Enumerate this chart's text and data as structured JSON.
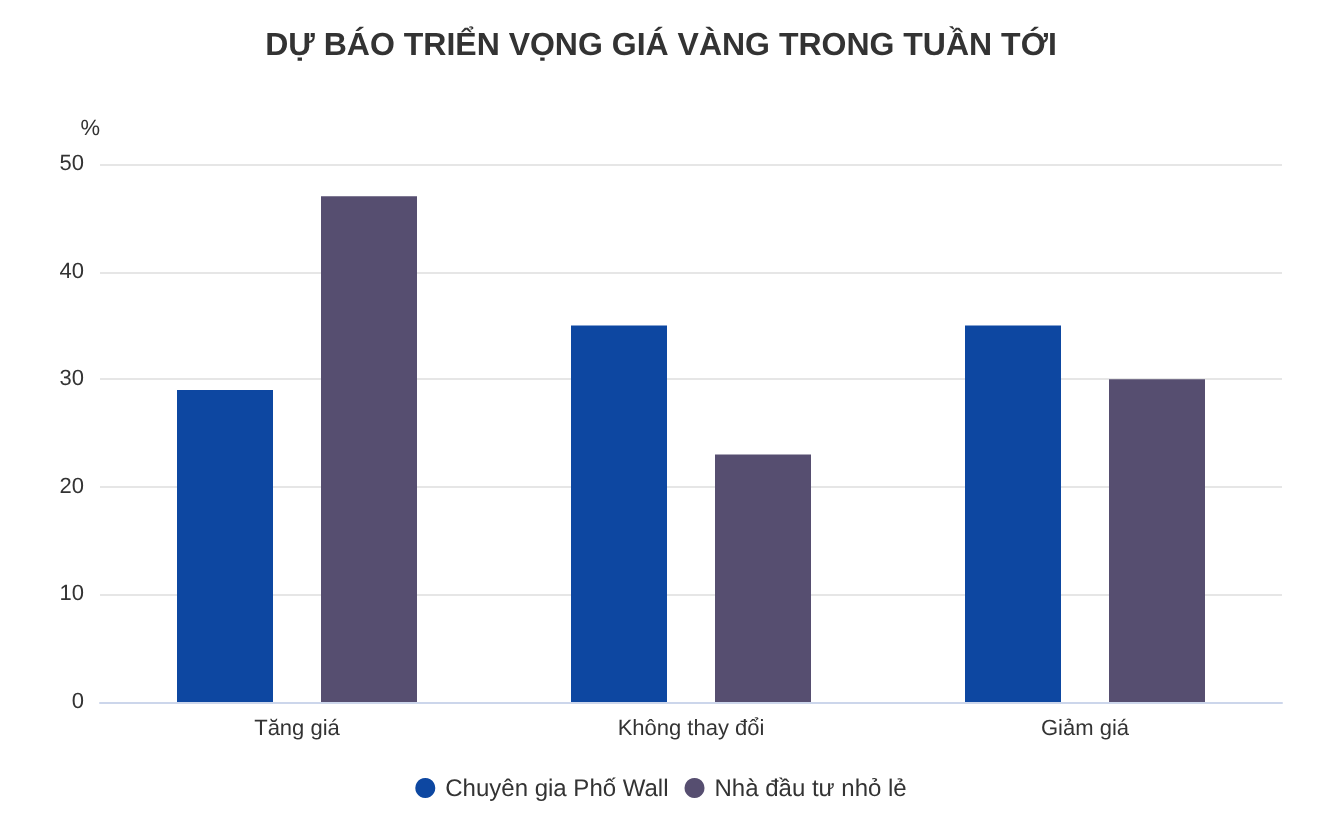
{
  "chart_data": {
    "type": "bar",
    "title": "DỰ BÁO TRIỂN VỌNG GIÁ VÀNG TRONG TUẦN TỚI",
    "ylabel": "%",
    "categories": [
      "Tăng giá",
      "Không thay đổi",
      "Giảm giá"
    ],
    "series": [
      {
        "name": "Chuyên gia Phố Wall",
        "color": "#0d47a1",
        "values": [
          29,
          35,
          35
        ]
      },
      {
        "name": "Nhà đầu tư nhỏ lẻ",
        "color": "#564e70",
        "values": [
          47,
          23,
          30
        ]
      }
    ],
    "ylim": [
      0,
      50
    ],
    "yticks": [
      0,
      10,
      20,
      30,
      40,
      50
    ],
    "grid": "y",
    "legend": "bottom"
  }
}
